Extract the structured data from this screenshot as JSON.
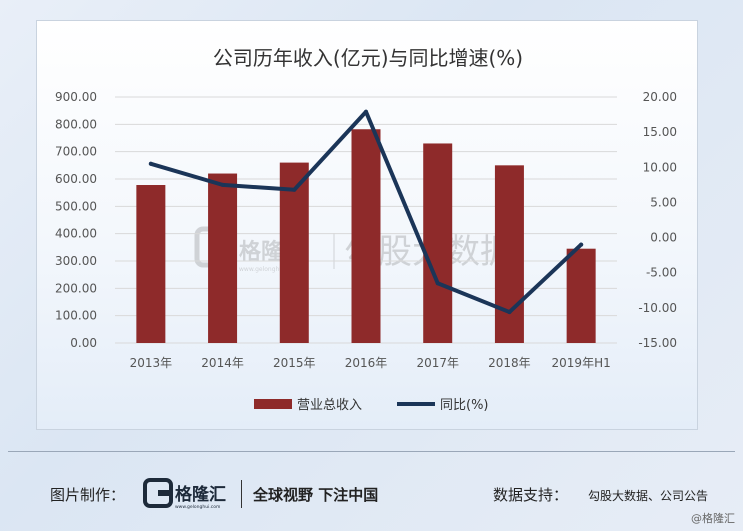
{
  "chart_data": {
    "type": "bar+line",
    "title": "公司历年收入(亿元)与同比增速(%)",
    "categories": [
      "2013年",
      "2014年",
      "2015年",
      "2016年",
      "2017年",
      "2018年",
      "2019年H1"
    ],
    "series": [
      {
        "name": "营业总收入",
        "type": "bar",
        "axis": "left",
        "color": "#8e2a2a",
        "values": [
          578,
          620,
          660,
          782,
          730,
          650,
          345
        ]
      },
      {
        "name": "同比(%)",
        "type": "line",
        "axis": "right",
        "color": "#1b3558",
        "values": [
          10.5,
          7.5,
          6.8,
          17.9,
          -6.5,
          -10.6,
          -1.0
        ]
      }
    ],
    "y_left": {
      "min": 0,
      "max": 900,
      "step": 100,
      "tick_labels": [
        "0.00",
        "100.00",
        "200.00",
        "300.00",
        "400.00",
        "500.00",
        "600.00",
        "700.00",
        "800.00",
        "900.00"
      ]
    },
    "y_right": {
      "min": -15,
      "max": 20,
      "step": 5,
      "tick_labels": [
        "-15.00",
        "-10.00",
        "-5.00",
        "0.00",
        "5.00",
        "10.00",
        "15.00",
        "20.00"
      ]
    },
    "grid": true,
    "legend_position": "bottom",
    "watermark": {
      "brand": "格隆汇",
      "site": "www.gelonghui.com",
      "text": "勾股大数据"
    }
  },
  "footer": {
    "credit_label": "图片制作：",
    "brand_name": "格隆汇",
    "brand_site": "www.gelonghui.com",
    "slogan": "全球视野 下注中国",
    "source_label": "数据支持：",
    "source_value": "勾股大数据、公司公告",
    "watermark": "@格隆汇"
  },
  "colors": {
    "bar": "#8e2a2a",
    "line": "#1b3558",
    "grid": "#d9d9d9",
    "axis_text": "#555555"
  }
}
